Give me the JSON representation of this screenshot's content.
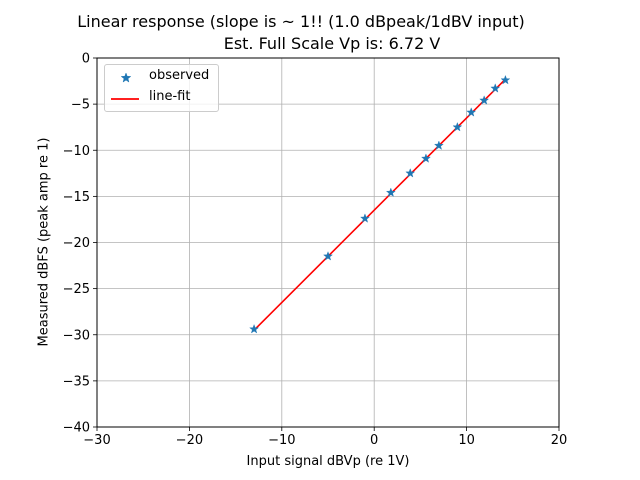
{
  "chart_data": {
    "type": "scatter",
    "title": "Linear response (slope is ~ 1!! (1.0 dBpeak/1dBV input)",
    "subtitle": "Est. Full Scale Vp is: 6.72 V",
    "xlabel": "Input signal dBVp (re 1V)",
    "ylabel": "Measured dBFS (peak amp re 1)",
    "xlim": [
      -30,
      20
    ],
    "ylim": [
      -40,
      0
    ],
    "xticks": [
      -30,
      -20,
      -10,
      0,
      10,
      20
    ],
    "xtick_labels": [
      "−30",
      "−20",
      "−10",
      "0",
      "10",
      "20"
    ],
    "yticks": [
      0,
      -5,
      -10,
      -15,
      -20,
      -25,
      -30,
      -35,
      -40
    ],
    "ytick_labels": [
      "0",
      "−5",
      "−10",
      "−15",
      "−20",
      "−25",
      "−30",
      "−35",
      "−40"
    ],
    "grid": true,
    "legend_position": "upper-left",
    "series": [
      {
        "name": "observed",
        "kind": "markers",
        "marker": "star",
        "color": "#1f77b4",
        "x": [
          -13.0,
          -5.0,
          -1.0,
          1.8,
          3.9,
          5.6,
          7.0,
          9.0,
          10.5,
          11.9,
          13.1,
          14.2
        ],
        "y": [
          -29.4,
          -21.5,
          -17.4,
          -14.6,
          -12.5,
          -10.9,
          -9.5,
          -7.5,
          -5.9,
          -4.6,
          -3.3,
          -2.4
        ]
      },
      {
        "name": "line-fit",
        "kind": "line",
        "color": "#ff0000",
        "x": [
          -13.0,
          14.2
        ],
        "y": [
          -29.5,
          -2.3
        ]
      }
    ]
  }
}
